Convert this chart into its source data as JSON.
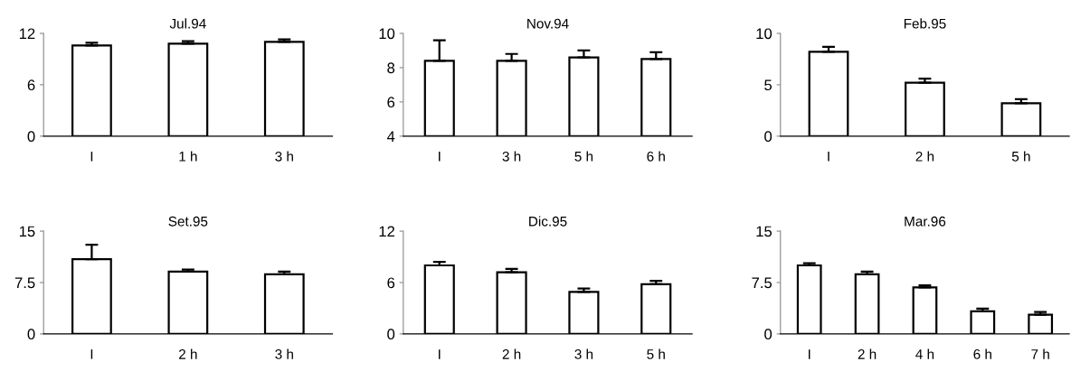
{
  "chart_data": [
    {
      "type": "bar",
      "title": "Jul.94",
      "categories": [
        "I",
        "1 h",
        "3 h"
      ],
      "values": [
        10.6,
        10.8,
        11.0
      ],
      "errors": [
        0.3,
        0.3,
        0.3
      ],
      "color": "#ffffff",
      "ylim": [
        0,
        12
      ],
      "yticks": [
        0,
        6,
        12
      ],
      "grid": false,
      "legend": false
    },
    {
      "type": "bar",
      "title": "Nov.94",
      "categories": [
        "I",
        "3 h",
        "5 h",
        "6 h"
      ],
      "values": [
        8.4,
        8.4,
        8.6,
        8.5
      ],
      "errors": [
        1.2,
        0.4,
        0.4,
        0.4
      ],
      "color": "#ffffff",
      "ylim": [
        4,
        10
      ],
      "yticks": [
        4,
        6,
        8,
        10
      ],
      "grid": false,
      "legend": false
    },
    {
      "type": "bar",
      "title": "Feb.95",
      "categories": [
        "I",
        "2 h",
        "5 h"
      ],
      "values": [
        8.2,
        5.2,
        3.2
      ],
      "errors": [
        0.5,
        0.4,
        0.4
      ],
      "color": "#ffffff",
      "ylim": [
        0,
        10
      ],
      "yticks": [
        0,
        5,
        10
      ],
      "grid": false,
      "legend": false
    },
    {
      "type": "bar",
      "title": "Set.95",
      "categories": [
        "I",
        "2 h",
        "3 h"
      ],
      "values": [
        10.9,
        9.1,
        8.7
      ],
      "errors": [
        2.1,
        0.3,
        0.4
      ],
      "color": "#ffffff",
      "ylim": [
        0,
        15
      ],
      "yticks": [
        0,
        7.5,
        15
      ],
      "grid": false,
      "legend": false
    },
    {
      "type": "bar",
      "title": "Dic.95",
      "categories": [
        "I",
        "2 h",
        "3 h",
        "5 h"
      ],
      "values": [
        8.0,
        7.2,
        4.9,
        5.8
      ],
      "errors": [
        0.4,
        0.4,
        0.4,
        0.4
      ],
      "color": "#ffffff",
      "ylim": [
        0,
        12
      ],
      "yticks": [
        0,
        6,
        12
      ],
      "grid": false,
      "legend": false
    },
    {
      "type": "bar",
      "title": "Mar.96",
      "categories": [
        "I",
        "2 h",
        "4 h",
        "6 h",
        "7 h"
      ],
      "values": [
        10.0,
        8.7,
        6.8,
        3.3,
        2.8
      ],
      "errors": [
        0.3,
        0.4,
        0.3,
        0.4,
        0.4
      ],
      "color": "#ffffff",
      "ylim": [
        0,
        15
      ],
      "yticks": [
        0,
        7.5,
        15
      ],
      "grid": false,
      "legend": false
    }
  ]
}
